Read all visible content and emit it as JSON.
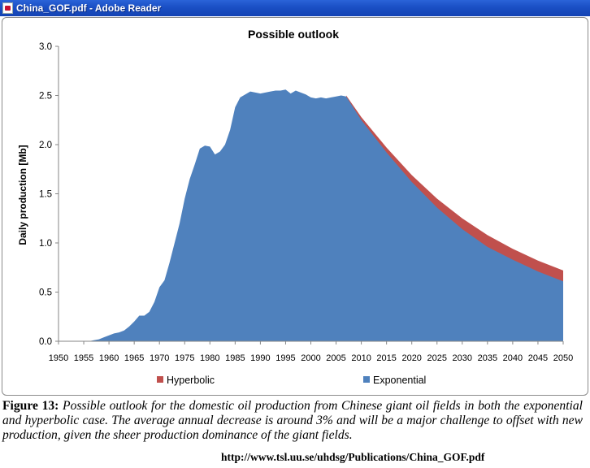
{
  "window": {
    "title": "China_GOF.pdf - Adobe Reader",
    "icon": "pdf-document-icon"
  },
  "chart_data": {
    "type": "area",
    "title": "Possible outlook",
    "xlabel": "",
    "ylabel": "Daily production  [Mb]",
    "ylim": [
      0,
      3.0
    ],
    "xlim": [
      1950,
      2050
    ],
    "y_ticks": [
      "0.0",
      "0.5",
      "1.0",
      "1.5",
      "2.0",
      "2.5",
      "3.0"
    ],
    "x_ticks": [
      "1950",
      "1955",
      "1960",
      "1965",
      "1970",
      "1975",
      "1980",
      "1985",
      "1990",
      "1995",
      "2000",
      "2005",
      "2010",
      "2015",
      "2020",
      "2025",
      "2030",
      "2035",
      "2040",
      "2045",
      "2050"
    ],
    "grid": false,
    "legend_position": "bottom",
    "colors": {
      "Hyperbolic": "#c0504d",
      "Exponential": "#4f81bd"
    },
    "series": [
      {
        "name": "Exponential",
        "x": [
          1956,
          1957,
          1958,
          1959,
          1960,
          1961,
          1962,
          1963,
          1964,
          1965,
          1966,
          1967,
          1968,
          1969,
          1970,
          1971,
          1972,
          1973,
          1974,
          1975,
          1976,
          1977,
          1978,
          1979,
          1980,
          1981,
          1982,
          1983,
          1984,
          1985,
          1986,
          1987,
          1988,
          1989,
          1990,
          1991,
          1992,
          1993,
          1994,
          1995,
          1996,
          1997,
          1998,
          1999,
          2000,
          2001,
          2002,
          2003,
          2004,
          2005,
          2006,
          2007,
          2010,
          2015,
          2020,
          2025,
          2030,
          2035,
          2040,
          2045,
          2050
        ],
        "values": [
          0,
          0.01,
          0.02,
          0.04,
          0.06,
          0.08,
          0.09,
          0.11,
          0.15,
          0.2,
          0.26,
          0.26,
          0.3,
          0.4,
          0.55,
          0.62,
          0.8,
          1.0,
          1.2,
          1.45,
          1.65,
          1.8,
          1.96,
          1.99,
          1.98,
          1.9,
          1.93,
          2.0,
          2.15,
          2.38,
          2.48,
          2.51,
          2.54,
          2.53,
          2.52,
          2.53,
          2.54,
          2.55,
          2.55,
          2.56,
          2.52,
          2.55,
          2.53,
          2.51,
          2.48,
          2.47,
          2.48,
          2.47,
          2.48,
          2.49,
          2.5,
          2.49,
          2.25,
          1.92,
          1.62,
          1.36,
          1.14,
          0.96,
          0.83,
          0.71,
          0.61
        ]
      },
      {
        "name": "Hyperbolic",
        "x": [
          2007,
          2010,
          2015,
          2020,
          2025,
          2030,
          2035,
          2040,
          2045,
          2050
        ],
        "values": [
          2.5,
          2.28,
          1.97,
          1.69,
          1.45,
          1.25,
          1.08,
          0.94,
          0.82,
          0.72
        ]
      }
    ]
  },
  "caption": {
    "figure_label": "Figure 13:",
    "text": " Possible outlook for the domestic oil production from Chinese giant oil fields in both the exponential and hyperbolic case. The average annual decrease is around 3% and will be a major challenge to offset with new production, given the sheer production dominance of the giant fields.",
    "url": "http://www.tsl.uu.se/uhdsg/Publications/China_GOF.pdf"
  }
}
